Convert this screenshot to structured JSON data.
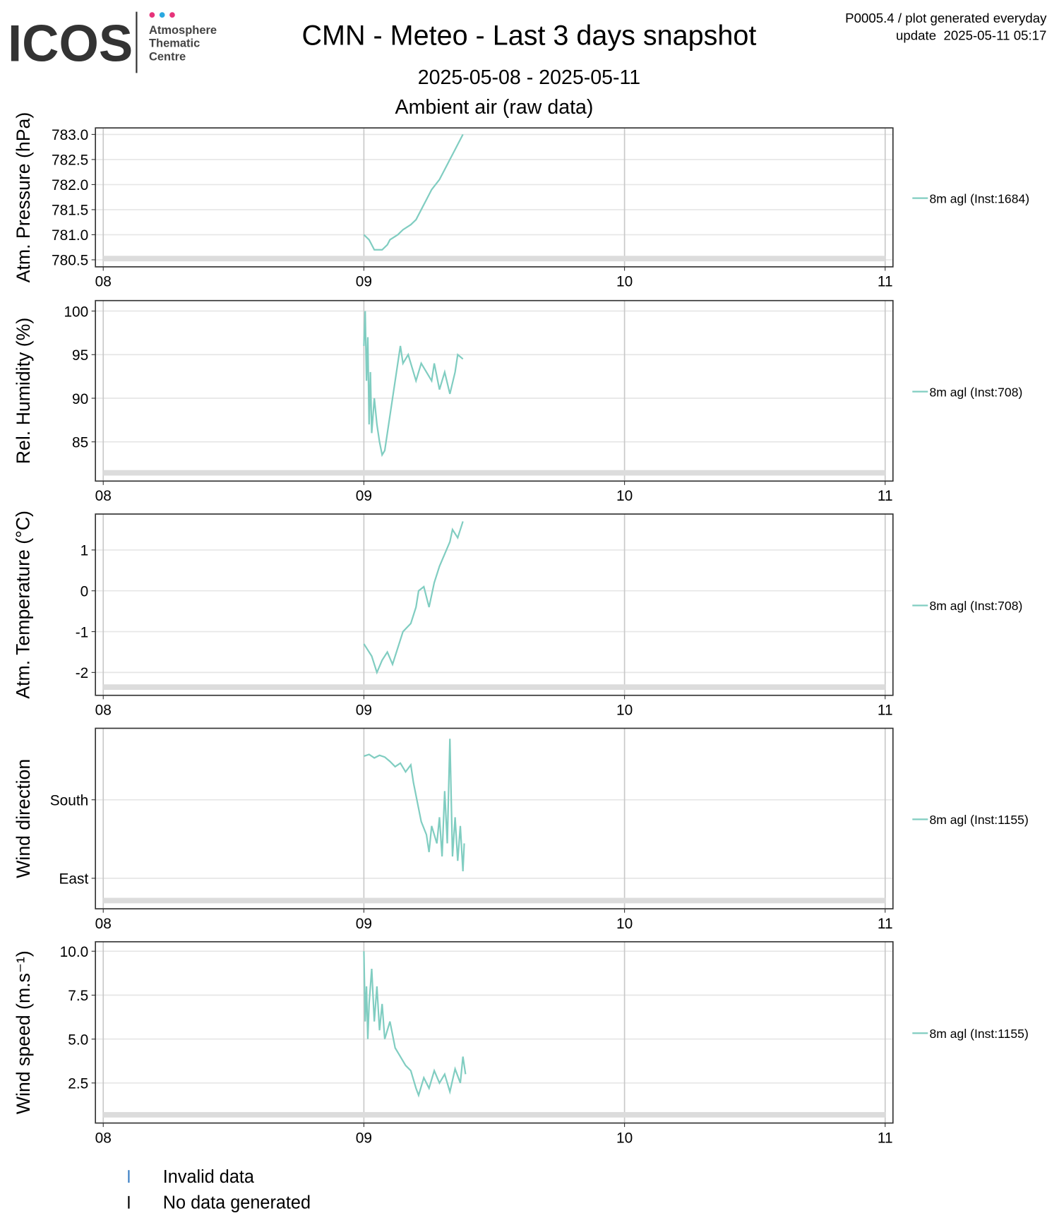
{
  "header": {
    "logo": "ICOS",
    "org": [
      "Atmosphere",
      "Thematic",
      "Centre"
    ],
    "title": "CMN - Meteo - Last 3 days snapshot",
    "subtitle": "2025-05-08 - 2025-05-11",
    "section": "Ambient air (raw data)",
    "note": [
      "P0005.4 / plot generated everyday",
      "update  2025-05-11 05:17"
    ]
  },
  "footer_legend": [
    "Invalid data",
    "No data generated"
  ],
  "chart_data": [
    {
      "type": "line",
      "ylabel": "Atm. Pressure (hPa)",
      "xlim": [
        7.97,
        11.03
      ],
      "xticks": [
        {
          "value": 8,
          "label": "08"
        },
        {
          "value": 9,
          "label": "09"
        },
        {
          "value": 10,
          "label": "10"
        },
        {
          "value": 11,
          "label": "11"
        }
      ],
      "ylim": [
        780.36,
        783.13
      ],
      "yticks": [
        {
          "value": 780.5,
          "label": "780.5"
        },
        {
          "value": 781,
          "label": "781.0"
        },
        {
          "value": 781.5,
          "label": "781.5"
        },
        {
          "value": 782,
          "label": "782.0"
        },
        {
          "value": 782.5,
          "label": "782.5"
        },
        {
          "value": 783,
          "label": "783.0"
        }
      ],
      "grid": true,
      "x": [
        9.0,
        9.02,
        9.03,
        9.04,
        9.07,
        9.09,
        9.1,
        9.13,
        9.15,
        9.18,
        9.2,
        9.22,
        9.24,
        9.26,
        9.29,
        9.31,
        9.33,
        9.35,
        9.37,
        9.38
      ],
      "series": [
        {
          "name": "8m agl (Inst:1684)",
          "color": "#80cdc1",
          "values": [
            781.0,
            780.9,
            780.8,
            780.7,
            780.7,
            780.8,
            780.9,
            781.0,
            781.1,
            781.2,
            781.3,
            781.5,
            781.7,
            781.9,
            782.1,
            782.3,
            782.5,
            782.7,
            782.9,
            783.0
          ]
        }
      ]
    },
    {
      "type": "line",
      "ylabel": "Rel. Humidity (%)",
      "xlim": [
        7.97,
        11.03
      ],
      "xticks": [
        {
          "value": 8,
          "label": "08"
        },
        {
          "value": 9,
          "label": "09"
        },
        {
          "value": 10,
          "label": "10"
        },
        {
          "value": 11,
          "label": "11"
        }
      ],
      "ylim": [
        80.5,
        101.2
      ],
      "yticks": [
        85,
        90,
        95,
        100
      ],
      "grid": true,
      "x": [
        9.0,
        9.005,
        9.01,
        9.015,
        9.02,
        9.025,
        9.03,
        9.04,
        9.05,
        9.06,
        9.07,
        9.08,
        9.09,
        9.1,
        9.11,
        9.12,
        9.14,
        9.15,
        9.17,
        9.19,
        9.2,
        9.22,
        9.24,
        9.26,
        9.27,
        9.29,
        9.31,
        9.33,
        9.35,
        9.36,
        9.38
      ],
      "series": [
        {
          "name": "8m agl (Inst:708)",
          "color": "#80cdc1",
          "values": [
            96,
            100,
            92,
            97,
            87,
            93,
            86,
            90,
            87,
            85,
            83.5,
            84,
            86,
            88,
            90,
            92,
            96,
            94,
            95,
            93,
            92,
            94,
            93,
            92,
            94,
            91,
            93,
            90.5,
            93,
            95,
            94.5
          ]
        }
      ]
    },
    {
      "type": "line",
      "ylabel": "Atm. Temperature (°C)",
      "xlim": [
        7.97,
        11.03
      ],
      "xticks": [
        {
          "value": 8,
          "label": "08"
        },
        {
          "value": 9,
          "label": "09"
        },
        {
          "value": 10,
          "label": "10"
        },
        {
          "value": 11,
          "label": "11"
        }
      ],
      "ylim": [
        -2.56,
        1.88
      ],
      "yticks": [
        -2,
        -1,
        0,
        1
      ],
      "grid": true,
      "x": [
        9.0,
        9.01,
        9.03,
        9.05,
        9.07,
        9.09,
        9.11,
        9.13,
        9.15,
        9.18,
        9.2,
        9.21,
        9.23,
        9.25,
        9.27,
        9.29,
        9.31,
        9.33,
        9.34,
        9.36,
        9.38
      ],
      "series": [
        {
          "name": "8m agl (Inst:708)",
          "color": "#80cdc1",
          "values": [
            -1.3,
            -1.4,
            -1.6,
            -2.0,
            -1.7,
            -1.5,
            -1.8,
            -1.4,
            -1.0,
            -0.8,
            -0.4,
            0.0,
            0.1,
            -0.4,
            0.2,
            0.6,
            0.9,
            1.2,
            1.5,
            1.3,
            1.7
          ]
        }
      ]
    },
    {
      "type": "line",
      "ylabel": "Wind direction",
      "xlim": [
        7.97,
        11.03
      ],
      "xticks": [
        {
          "value": 8,
          "label": "08"
        },
        {
          "value": 9,
          "label": "09"
        },
        {
          "value": 10,
          "label": "10"
        },
        {
          "value": 11,
          "label": "11"
        }
      ],
      "ylim": [
        55,
        262
      ],
      "yticks": [
        {
          "value": 90,
          "label": "East"
        },
        {
          "value": 180,
          "label": "South"
        }
      ],
      "grid": true,
      "x": [
        9.0,
        9.02,
        9.04,
        9.06,
        9.08,
        9.1,
        9.12,
        9.14,
        9.16,
        9.18,
        9.19,
        9.21,
        9.22,
        9.24,
        9.25,
        9.26,
        9.28,
        9.29,
        9.3,
        9.31,
        9.32,
        9.33,
        9.34,
        9.35,
        9.36,
        9.37,
        9.38,
        9.385
      ],
      "series": [
        {
          "name": "8m agl (Inst:1155)",
          "color": "#80cdc1",
          "values": [
            230,
            232,
            228,
            231,
            229,
            224,
            218,
            222,
            212,
            220,
            200,
            170,
            155,
            140,
            120,
            150,
            130,
            160,
            115,
            190,
            130,
            250,
            115,
            160,
            110,
            150,
            98,
            130
          ]
        }
      ]
    },
    {
      "type": "line",
      "ylabel": "Wind speed (m.s⁻¹)",
      "xlim": [
        7.97,
        11.03
      ],
      "xticks": [
        {
          "value": 8,
          "label": "08"
        },
        {
          "value": 9,
          "label": "09"
        },
        {
          "value": 10,
          "label": "10"
        },
        {
          "value": 11,
          "label": "11"
        }
      ],
      "ylim": [
        0.22,
        10.54
      ],
      "yticks": [
        2.5,
        {
          "value": 5,
          "label": "5.0"
        },
        7.5,
        {
          "value": 10,
          "label": "10.0"
        }
      ],
      "grid": true,
      "x": [
        9.0,
        9.005,
        9.01,
        9.015,
        9.02,
        9.03,
        9.04,
        9.05,
        9.06,
        9.07,
        9.08,
        9.1,
        9.12,
        9.14,
        9.16,
        9.18,
        9.2,
        9.21,
        9.23,
        9.25,
        9.27,
        9.29,
        9.31,
        9.33,
        9.35,
        9.37,
        9.38,
        9.39
      ],
      "series": [
        {
          "name": "8m agl (Inst:1155)",
          "color": "#80cdc1",
          "values": [
            10,
            6,
            8,
            5,
            7,
            9,
            6,
            8,
            5.5,
            7,
            5,
            6,
            4.5,
            4,
            3.5,
            3.2,
            2.2,
            1.8,
            2.8,
            2.2,
            3.2,
            2.5,
            3.0,
            2.0,
            3.3,
            2.5,
            4.0,
            3.0
          ]
        }
      ]
    }
  ]
}
